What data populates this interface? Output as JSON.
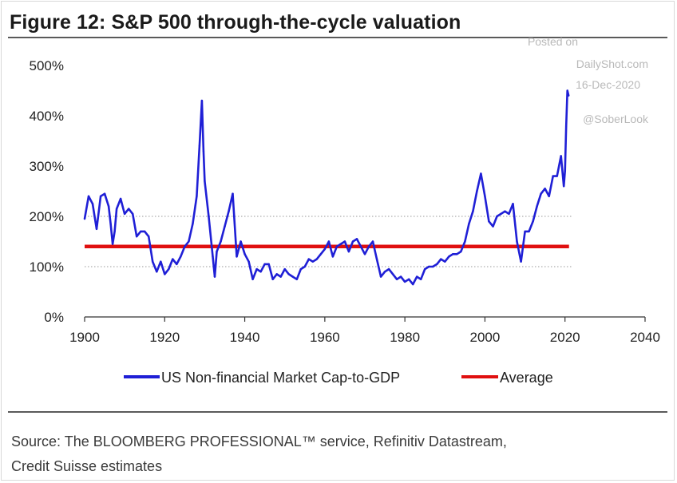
{
  "header": {
    "title": "Figure 12: S&P 500 through-the-cycle valuation"
  },
  "watermark": {
    "line1": "Posted on",
    "line2": "DailyShot.com",
    "line3": "16-Dec-2020",
    "line4": "@SoberLook"
  },
  "footer": {
    "source_line1": "Source: The BLOOMBERG PROFESSIONAL™ service, Refinitiv Datastream,",
    "source_line2": "Credit Suisse estimates"
  },
  "colors": {
    "series_main": "#1f1fd6",
    "average": "#e01010",
    "gridline": "#9a9a9a"
  },
  "chart_data": {
    "type": "line",
    "title": "Figure 12: S&P 500 through-the-cycle valuation",
    "xlabel": "",
    "ylabel": "",
    "xlim": [
      1900,
      2040
    ],
    "ylim": [
      0,
      500
    ],
    "x_ticks": [
      "1900",
      "1920",
      "1940",
      "1960",
      "1980",
      "2000",
      "2020",
      "2040"
    ],
    "y_ticks": [
      "0%",
      "100%",
      "200%",
      "300%",
      "400%",
      "500%"
    ],
    "grid": "dotted horizontal at 100% and 200%",
    "legend_position": "bottom",
    "series": [
      {
        "name": "US Non-financial Market Cap-to-GDP",
        "color": "#1f1fd6",
        "x": [
          1900,
          1901,
          1902,
          1903,
          1904,
          1905,
          1906,
          1906.5,
          1907,
          1907.5,
          1908,
          1909,
          1910,
          1911,
          1912,
          1913,
          1914,
          1915,
          1916,
          1917,
          1918,
          1919,
          1920,
          1921,
          1922,
          1923,
          1924,
          1925,
          1926,
          1927,
          1928,
          1928.7,
          1929.3,
          1929.7,
          1930,
          1931,
          1932,
          1932.5,
          1933,
          1934,
          1935,
          1936,
          1937,
          1938,
          1939,
          1940,
          1941,
          1942,
          1943,
          1944,
          1945,
          1946,
          1947,
          1948,
          1949,
          1950,
          1951,
          1952,
          1953,
          1954,
          1955,
          1956,
          1957,
          1958,
          1959,
          1960,
          1961,
          1962,
          1963,
          1964,
          1965,
          1966,
          1967,
          1968,
          1969,
          1970,
          1971,
          1972,
          1973,
          1974,
          1975,
          1976,
          1977,
          1978,
          1979,
          1980,
          1981,
          1982,
          1983,
          1984,
          1985,
          1986,
          1987,
          1988,
          1989,
          1990,
          1991,
          1992,
          1993,
          1994,
          1995,
          1996,
          1997,
          1998,
          1999,
          2000,
          2001,
          2002,
          2003,
          2004,
          2005,
          2006,
          2007,
          2008,
          2009,
          2010,
          2011,
          2012,
          2013,
          2014,
          2015,
          2016,
          2017,
          2018,
          2019,
          2019.7,
          2020,
          2020.3,
          2020.6,
          2020.9
        ],
        "values": [
          195,
          240,
          225,
          175,
          240,
          245,
          220,
          185,
          145,
          170,
          215,
          235,
          205,
          215,
          205,
          160,
          170,
          170,
          160,
          110,
          90,
          110,
          85,
          95,
          115,
          105,
          120,
          140,
          150,
          185,
          240,
          340,
          430,
          330,
          270,
          200,
          120,
          80,
          130,
          150,
          180,
          210,
          245,
          120,
          150,
          125,
          110,
          75,
          95,
          90,
          105,
          105,
          75,
          85,
          80,
          95,
          85,
          80,
          75,
          95,
          100,
          115,
          110,
          115,
          125,
          135,
          150,
          120,
          140,
          145,
          150,
          130,
          150,
          155,
          140,
          125,
          140,
          150,
          115,
          80,
          90,
          95,
          85,
          75,
          80,
          70,
          75,
          65,
          80,
          75,
          95,
          100,
          100,
          105,
          115,
          110,
          120,
          125,
          125,
          130,
          150,
          185,
          210,
          250,
          285,
          240,
          190,
          180,
          200,
          205,
          210,
          205,
          225,
          150,
          110,
          170,
          170,
          190,
          220,
          245,
          255,
          240,
          280,
          280,
          320,
          260,
          290,
          380,
          450,
          440
        ]
      },
      {
        "name": "Average",
        "color": "#e01010",
        "x": [
          1900,
          2021
        ],
        "values": [
          140,
          140
        ]
      }
    ]
  }
}
